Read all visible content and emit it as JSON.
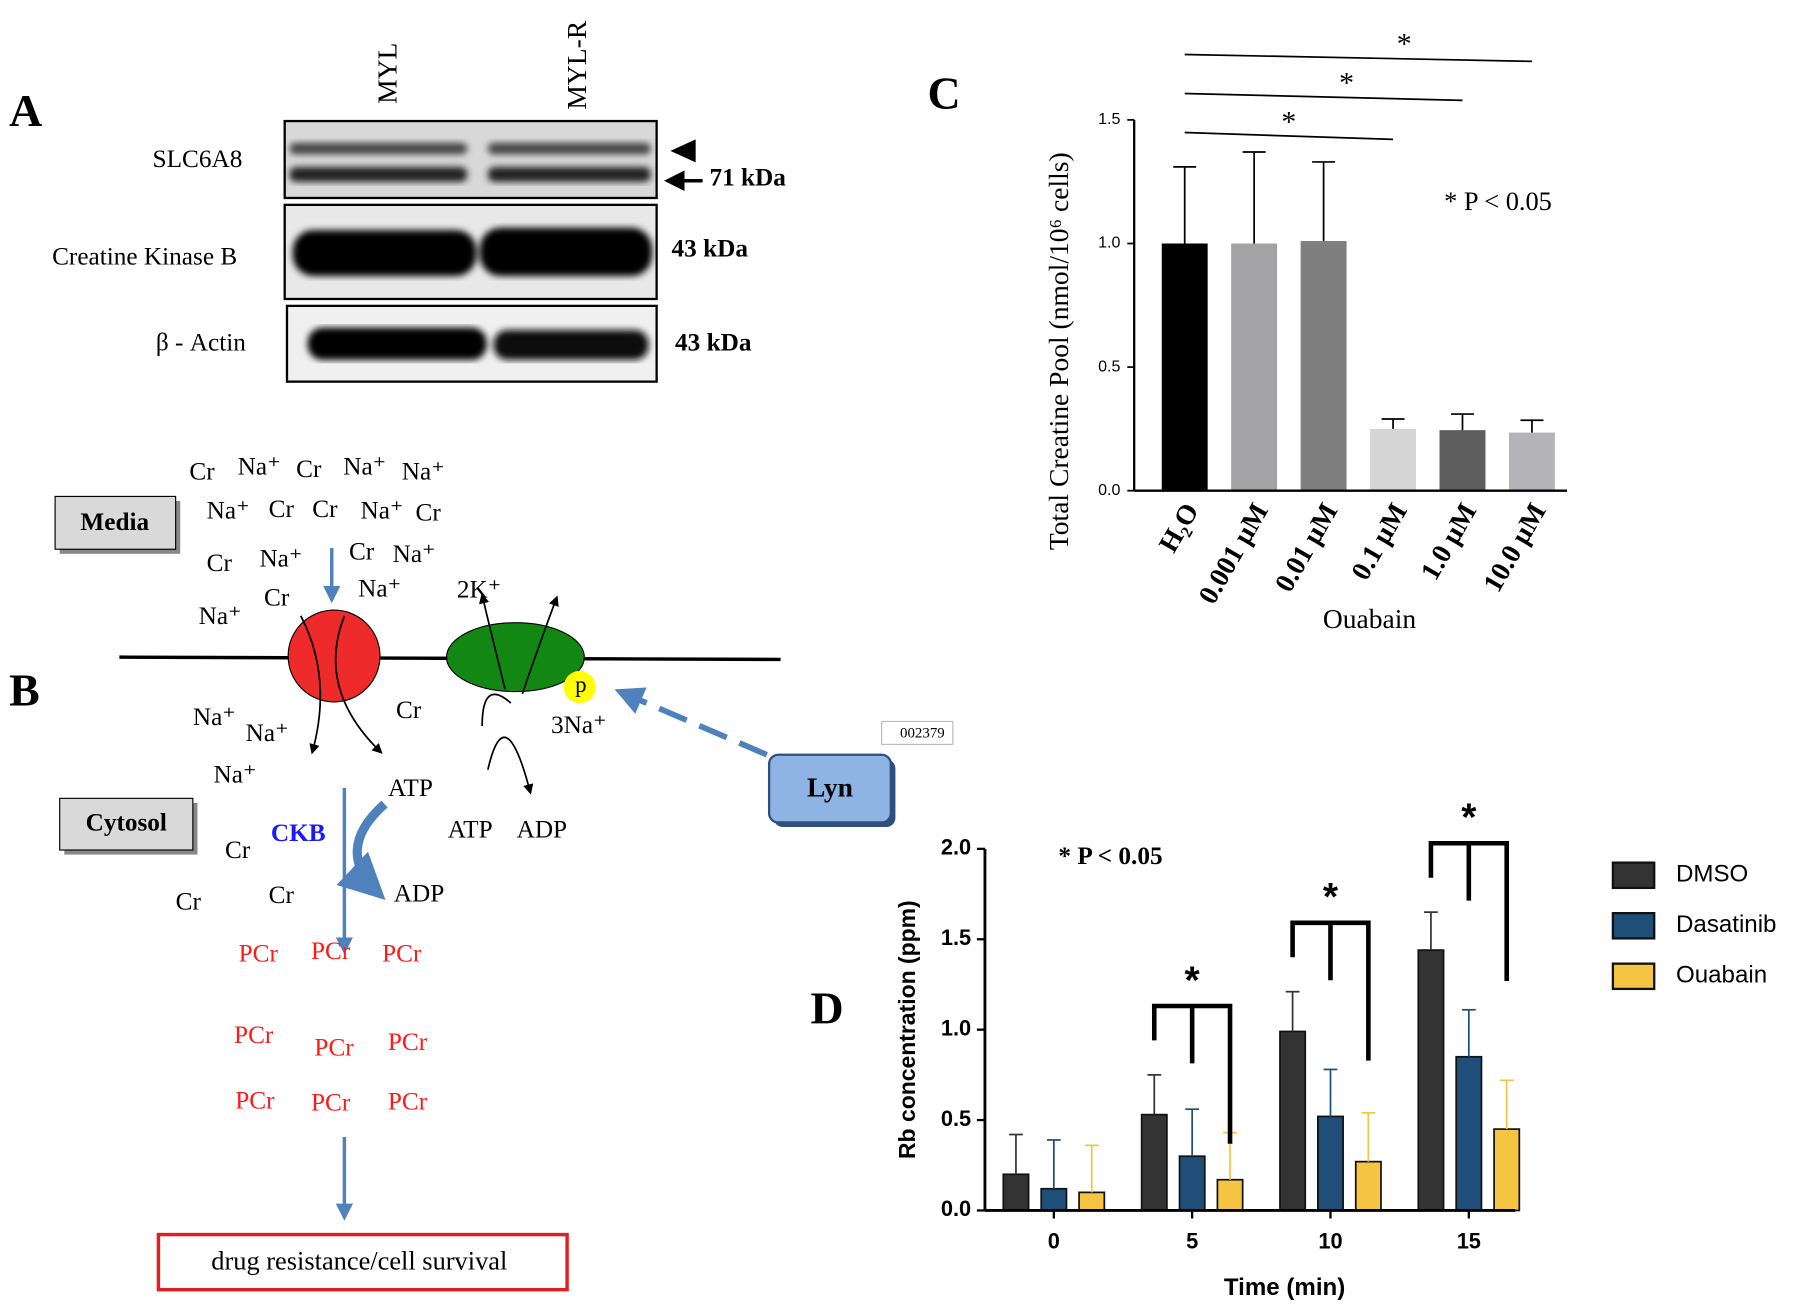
{
  "panel_a": {
    "letter": "A",
    "lanes": [
      "MYL",
      "MYL-R"
    ],
    "rows": [
      {
        "name": "SLC6A8",
        "size": "71 kDa"
      },
      {
        "name": "Creatine Kinase B",
        "size": "43 kDa"
      },
      {
        "name": "β - Actin",
        "size": "43 kDa"
      }
    ]
  },
  "panel_b": {
    "letter": "B",
    "media": "Media",
    "cytosol": "Cytosol",
    "media_ions": [
      "Cr",
      "Na⁺",
      "Cr",
      "Na⁺",
      "Na⁺",
      "Na⁺",
      "Cr",
      "Cr",
      "Na⁺",
      "Cr",
      "Cr",
      "Na⁺",
      "Cr",
      "Na⁺",
      "Cr",
      "Na⁺",
      "Na⁺"
    ],
    "cytosol_ions": [
      "Na⁺",
      "Na⁺",
      "Na⁺",
      "Cr",
      "Cr",
      "Cr",
      "Cr"
    ],
    "pump_ions": [
      "2K⁺",
      "3Na⁺"
    ],
    "phospho": "p",
    "ckb": "CKB",
    "energy": [
      "ATP",
      "ADP",
      "ATP",
      "ADP"
    ],
    "lyn": "Lyn",
    "code": "002379",
    "pcr": [
      "PCr",
      "PCr",
      "PCr",
      "PCr",
      "PCr",
      "PCr",
      "PCr",
      "PCr",
      "PCr"
    ],
    "outcome": "drug resistance/cell survival"
  },
  "chart_data": [
    {
      "type": "bar",
      "panel": "C",
      "categories": [
        "H₂O",
        "0.001 µM",
        "0.01 µM",
        "0.1 µM",
        "1.0 µM",
        "10.0 µM"
      ],
      "values": [
        1.0,
        1.0,
        1.01,
        0.25,
        0.245,
        0.235
      ],
      "errors": [
        0.31,
        0.37,
        0.32,
        0.04,
        0.065,
        0.05
      ],
      "colors": [
        "#000000",
        "#a3a3a6",
        "#7f7f7f",
        "#d4d4d4",
        "#5e5e5e",
        "#b3b3b8"
      ],
      "ylim": [
        0,
        1.5
      ],
      "yticks": [
        {
          "value": 0,
          "label": "0.0"
        },
        {
          "value": 0.5,
          "label": "0.5"
        },
        {
          "value": 1,
          "label": "1.0"
        },
        {
          "value": 1.5,
          "label": "1.5"
        }
      ],
      "ylabel": "Total Creatine Pool (nmol/10⁶ cells)",
      "xlabel": "Ouabain",
      "annotation": "* P < 0.05",
      "significance": [
        {
          "start": 0,
          "end": 3,
          "label": "*"
        },
        {
          "start": 0,
          "end": 4,
          "label": "*"
        },
        {
          "start": 0,
          "end": 5,
          "label": "*"
        }
      ]
    },
    {
      "type": "grouped_bar",
      "panel": "D",
      "categories": [
        "0",
        "5",
        "10",
        "15"
      ],
      "series": [
        {
          "name": "DMSO",
          "color": "#333333",
          "values": [
            0.2,
            0.53,
            0.99,
            1.44
          ],
          "errors": [
            0.22,
            0.22,
            0.22,
            0.21
          ]
        },
        {
          "name": "Dasatinib",
          "color": "#1f4e79",
          "values": [
            0.12,
            0.3,
            0.52,
            0.85
          ],
          "errors": [
            0.27,
            0.26,
            0.26,
            0.26
          ]
        },
        {
          "name": "Ouabain",
          "color": "#f5c542",
          "values": [
            0.1,
            0.17,
            0.27,
            0.45
          ],
          "errors": [
            0.26,
            0.26,
            0.27,
            0.27
          ]
        }
      ],
      "ylim": [
        0,
        2
      ],
      "yticks": [
        {
          "value": 0,
          "label": "0.0"
        },
        {
          "value": 0.5,
          "label": "0.5"
        },
        {
          "value": 1,
          "label": "1.0"
        },
        {
          "value": 1.5,
          "label": "1.5"
        },
        {
          "value": 2,
          "label": "2.0"
        }
      ],
      "ylabel": "Rb concentration (ppm)",
      "xlabel": "Time (min)",
      "annotation": "* P < 0.05",
      "significance": [
        {
          "category": 1,
          "label": "*"
        },
        {
          "category": 2,
          "label": "*"
        },
        {
          "category": 3,
          "label": "*"
        }
      ]
    }
  ]
}
